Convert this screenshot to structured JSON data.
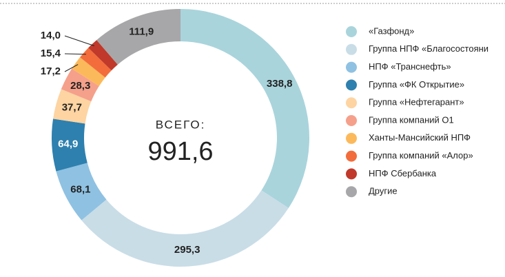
{
  "chart_data": {
    "type": "donut",
    "center_label": "ВСЕГО:",
    "total": {
      "value": 991.6,
      "label": "991,6"
    },
    "categories": [
      "«Газфонд»",
      "Группа НПФ «Благосостояни",
      "НПФ «Транснефть»",
      "Группа «ФК Открытие»",
      "Группа «Нефтегарант»",
      "Группа компаний О1",
      "Ханты-Мансийский НПФ",
      "Группа компаний «Алор»",
      "НПФ Сбербанка",
      "Другие"
    ],
    "values": [
      338.8,
      295.3,
      68.1,
      64.9,
      37.7,
      28.3,
      17.2,
      15.4,
      14.0,
      111.9
    ],
    "value_labels": [
      "338,8",
      "295,3",
      "68,1",
      "64,9",
      "37,7",
      "28,3",
      "17,2",
      "15,4",
      "14,0",
      "111,9"
    ],
    "colors": [
      "#a9d4dc",
      "#c9dde7",
      "#8fc1e2",
      "#2e80ae",
      "#fdd4a2",
      "#f5a08b",
      "#fcb95b",
      "#f26d3b",
      "#c0392b",
      "#a7a7a9"
    ]
  }
}
